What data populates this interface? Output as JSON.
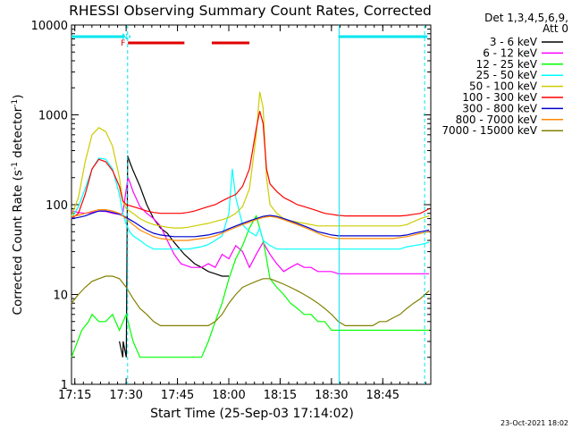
{
  "chart_data": {
    "type": "line",
    "title": "RHESSI Observing Summary Count Rates, Corrected",
    "xlabel": "Start Time (25-Sep-03 17:14:02)",
    "ylabel_parts": [
      "Corrected Count Rate (s",
      "-1",
      " detector",
      "-1",
      ")"
    ],
    "yscale": "log",
    "ylim": [
      1,
      10000
    ],
    "xlim_minutes": [
      0,
      105
    ],
    "x_ticks": [
      {
        "m": 0.97,
        "label": "17:15"
      },
      {
        "m": 15.97,
        "label": "17:30"
      },
      {
        "m": 30.97,
        "label": "17:45"
      },
      {
        "m": 45.97,
        "label": "18:00"
      },
      {
        "m": 60.97,
        "label": "18:15"
      },
      {
        "m": 75.97,
        "label": "18:30"
      },
      {
        "m": 90.97,
        "label": "18:45"
      }
    ],
    "y_ticks": [
      {
        "v": 1,
        "label": "1"
      },
      {
        "v": 10,
        "label": "10"
      },
      {
        "v": 100,
        "label": "100"
      },
      {
        "v": 1000,
        "label": "1000"
      },
      {
        "v": 10000,
        "label": "10000"
      }
    ],
    "detectors": "Det 1,3,4,5,6,9,",
    "attenuator": "Att 0",
    "series": [
      {
        "name": "3 - 6 keV",
        "color": "#000000",
        "x": [
          14,
          15,
          15.1,
          16,
          16.4,
          17,
          18,
          20,
          22,
          24,
          26,
          28,
          30,
          33,
          36,
          38,
          40,
          42,
          44,
          46
        ],
        "y": [
          3,
          2,
          3,
          2,
          350,
          300,
          240,
          160,
          100,
          70,
          55,
          48,
          38,
          28,
          22,
          20,
          18,
          17,
          16,
          16
        ]
      },
      {
        "name": "6 - 12 keV",
        "color": "#ff00ff",
        "x": [
          0,
          2,
          4,
          6,
          8,
          10,
          12,
          14,
          15,
          16,
          16.5,
          17,
          18,
          20,
          22,
          24,
          26,
          28,
          30,
          32,
          35,
          38,
          40,
          42,
          44,
          46,
          48,
          50,
          52,
          54,
          56,
          58,
          60,
          62,
          64,
          66,
          68,
          70,
          72,
          74,
          76,
          78,
          80,
          84,
          88,
          92,
          96,
          100,
          104.5
        ],
        "y": [
          85,
          82,
          80,
          82,
          85,
          84,
          80,
          78,
          80,
          150,
          200,
          180,
          140,
          95,
          80,
          70,
          58,
          40,
          28,
          22,
          20,
          20,
          22,
          20,
          28,
          25,
          35,
          30,
          20,
          28,
          38,
          28,
          22,
          18,
          20,
          22,
          20,
          20,
          18,
          18,
          18,
          17,
          17,
          17,
          17,
          17,
          17,
          17,
          17
        ]
      },
      {
        "name": "12 - 25 keV",
        "color": "#00ff00",
        "x": [
          0,
          3,
          5,
          6,
          8,
          10,
          12,
          14,
          16,
          18,
          20,
          22,
          24,
          26,
          28,
          30,
          32,
          34,
          36,
          38,
          40,
          42,
          44,
          46,
          48,
          50,
          52,
          54,
          56,
          57,
          58,
          60,
          62,
          64,
          66,
          68,
          70,
          72,
          74,
          76,
          78,
          80,
          82,
          84,
          86,
          88,
          90,
          92,
          94,
          96,
          100,
          104.5
        ],
        "y": [
          2,
          4,
          5,
          6,
          5,
          5,
          6,
          4,
          6,
          3,
          2,
          2,
          2,
          2,
          2,
          2,
          2,
          2,
          2,
          2,
          3,
          5,
          8,
          15,
          25,
          35,
          55,
          75,
          40,
          25,
          15,
          12,
          10,
          8,
          7,
          6,
          6,
          5,
          5,
          4,
          4,
          4,
          4,
          4,
          4,
          4,
          4,
          4,
          4,
          4,
          4,
          4
        ]
      },
      {
        "name": "25 - 50 keV",
        "color": "#00ffff",
        "x": [
          0,
          2,
          4,
          6,
          8,
          10,
          12,
          14,
          15,
          16,
          17,
          18,
          20,
          22,
          24,
          26,
          28,
          30,
          32,
          34,
          36,
          38,
          40,
          42,
          44,
          46,
          47,
          48,
          50,
          52,
          54,
          55,
          56,
          58,
          60,
          62,
          64,
          66,
          68,
          70,
          72,
          74,
          76,
          78,
          80,
          82,
          84,
          86,
          88,
          90,
          92,
          94,
          96,
          98,
          100,
          102,
          104.5
        ],
        "y": [
          70,
          95,
          150,
          250,
          330,
          320,
          250,
          130,
          80,
          60,
          50,
          45,
          40,
          35,
          32,
          32,
          32,
          32,
          32,
          32,
          33,
          34,
          36,
          40,
          45,
          80,
          250,
          120,
          60,
          50,
          45,
          55,
          40,
          35,
          32,
          32,
          32,
          32,
          32,
          32,
          32,
          32,
          32,
          32,
          32,
          32,
          32,
          32,
          32,
          32,
          32,
          32,
          32,
          34,
          35,
          36,
          38
        ]
      },
      {
        "name": "50 - 100 keV",
        "color": "#cccc00",
        "x": [
          0,
          2,
          4,
          6,
          8,
          10,
          12,
          14,
          15,
          16,
          18,
          20,
          22,
          24,
          26,
          28,
          30,
          32,
          34,
          36,
          38,
          40,
          42,
          44,
          46,
          48,
          50,
          52,
          54,
          55,
          56,
          57,
          58,
          60,
          62,
          64,
          66,
          68,
          70,
          72,
          74,
          76,
          78,
          80,
          82,
          84,
          86,
          88,
          90,
          92,
          94,
          96,
          98,
          100,
          102,
          104.5
        ],
        "y": [
          75,
          120,
          300,
          600,
          720,
          650,
          450,
          200,
          110,
          90,
          80,
          70,
          64,
          60,
          58,
          56,
          55,
          55,
          56,
          58,
          60,
          62,
          65,
          68,
          72,
          80,
          95,
          150,
          600,
          1800,
          1200,
          200,
          100,
          80,
          70,
          66,
          64,
          62,
          60,
          58,
          58,
          58,
          58,
          58,
          58,
          58,
          58,
          58,
          58,
          58,
          58,
          58,
          60,
          65,
          70,
          75
        ]
      },
      {
        "name": "100 - 300 keV",
        "color": "#ff0000",
        "x": [
          0,
          2,
          4,
          6,
          8,
          10,
          12,
          14,
          15,
          16,
          18,
          20,
          22,
          24,
          26,
          28,
          30,
          32,
          34,
          36,
          38,
          40,
          42,
          44,
          46,
          48,
          50,
          52,
          54,
          55,
          56,
          57,
          58,
          60,
          62,
          64,
          66,
          68,
          70,
          72,
          74,
          76,
          78,
          80,
          82,
          84,
          86,
          88,
          90,
          92,
          94,
          96,
          98,
          100,
          102,
          104.5
        ],
        "y": [
          70,
          80,
          130,
          250,
          320,
          300,
          240,
          160,
          110,
          100,
          95,
          90,
          85,
          82,
          80,
          80,
          80,
          80,
          82,
          85,
          90,
          95,
          100,
          110,
          120,
          130,
          160,
          250,
          700,
          1100,
          800,
          250,
          170,
          140,
          120,
          110,
          100,
          95,
          90,
          85,
          80,
          78,
          76,
          75,
          75,
          75,
          75,
          75,
          75,
          75,
          75,
          75,
          76,
          78,
          80,
          90
        ]
      },
      {
        "name": "300 - 800 keV",
        "color": "#0000cc",
        "x": [
          0,
          2,
          4,
          6,
          8,
          10,
          12,
          14,
          16,
          18,
          20,
          22,
          24,
          26,
          28,
          30,
          32,
          34,
          36,
          38,
          40,
          42,
          44,
          46,
          48,
          50,
          52,
          54,
          56,
          58,
          60,
          62,
          64,
          66,
          68,
          70,
          72,
          74,
          76,
          78,
          80,
          82,
          84,
          86,
          88,
          90,
          92,
          94,
          96,
          98,
          100,
          102,
          104.5
        ],
        "y": [
          70,
          72,
          75,
          80,
          85,
          85,
          82,
          78,
          72,
          65,
          58,
          52,
          48,
          46,
          45,
          44,
          44,
          44,
          44,
          45,
          46,
          48,
          50,
          54,
          58,
          62,
          66,
          70,
          74,
          76,
          74,
          70,
          66,
          62,
          58,
          54,
          50,
          48,
          46,
          45,
          45,
          45,
          45,
          45,
          45,
          45,
          45,
          45,
          45,
          46,
          48,
          50,
          52
        ]
      },
      {
        "name": "800 - 7000 keV",
        "color": "#ff8800",
        "x": [
          0,
          2,
          4,
          6,
          8,
          10,
          12,
          14,
          16,
          18,
          20,
          22,
          24,
          26,
          28,
          30,
          32,
          34,
          36,
          38,
          40,
          42,
          44,
          46,
          48,
          50,
          52,
          54,
          56,
          58,
          60,
          62,
          64,
          66,
          68,
          70,
          72,
          74,
          76,
          78,
          80,
          82,
          84,
          86,
          88,
          90,
          92,
          94,
          96,
          98,
          100,
          102,
          104.5
        ],
        "y": [
          74,
          76,
          80,
          84,
          88,
          88,
          85,
          80,
          70,
          60,
          52,
          48,
          44,
          42,
          41,
          40,
          40,
          40,
          41,
          42,
          43,
          45,
          48,
          52,
          56,
          60,
          64,
          68,
          72,
          74,
          72,
          68,
          64,
          60,
          56,
          52,
          48,
          45,
          43,
          42,
          42,
          42,
          42,
          42,
          42,
          42,
          42,
          42,
          43,
          44,
          46,
          48,
          50
        ]
      },
      {
        "name": "7000 - 15000 keV",
        "color": "#808000",
        "x": [
          0,
          2,
          4,
          6,
          8,
          10,
          12,
          14,
          16,
          18,
          20,
          22,
          24,
          26,
          28,
          30,
          32,
          34,
          36,
          38,
          40,
          42,
          44,
          46,
          48,
          50,
          52,
          54,
          56,
          58,
          60,
          62,
          64,
          66,
          68,
          70,
          72,
          74,
          76,
          78,
          80,
          82,
          84,
          86,
          88,
          90,
          92,
          94,
          96,
          98,
          100,
          102,
          104.5
        ],
        "y": [
          8,
          10,
          12,
          14,
          15,
          16,
          16,
          15,
          12,
          9,
          7,
          6,
          5,
          4.5,
          4.5,
          4.5,
          4.5,
          4.5,
          4.5,
          4.5,
          4.5,
          5,
          6,
          8,
          10,
          12,
          13,
          14,
          15,
          15,
          14,
          13,
          12,
          11,
          10,
          9,
          8,
          7,
          6,
          5,
          4.5,
          4.5,
          4.5,
          4.5,
          4.5,
          5,
          5,
          5.5,
          6,
          7,
          8,
          9,
          11
        ]
      }
    ],
    "flag_bars": [
      {
        "color": "#00e5ee",
        "label": "",
        "x0": 0,
        "x1": 15.5
      },
      {
        "color": "#00e5ee",
        "label": "N",
        "x0": 16.8,
        "x1": 17.2
      },
      {
        "color": "#e00000",
        "label": "F",
        "x0": 16.5,
        "x1": 33
      },
      {
        "color": "#e00000",
        "label": "",
        "x0": 41,
        "x1": 52
      },
      {
        "color": "#00e5ee",
        "label": "",
        "x0": 78,
        "x1": 104
      }
    ],
    "vertical_markers": [
      {
        "x": 16.4,
        "style": "dashed"
      },
      {
        "x": 78.2,
        "style": "solid"
      },
      {
        "x": 103.2,
        "style": "dashed"
      }
    ]
  },
  "footer": {
    "timestamp": "23-Oct-2021 18:02"
  }
}
